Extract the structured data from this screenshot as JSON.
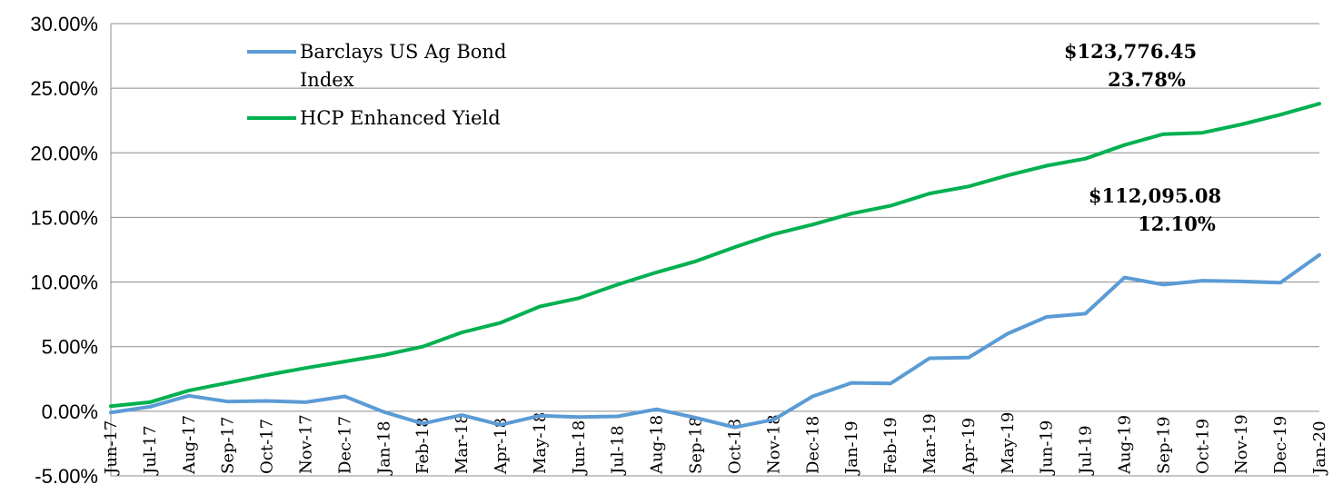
{
  "chart_data": {
    "type": "line",
    "categories": [
      "Jun-17",
      "Jul-17",
      "Aug-17",
      "Sep-17",
      "Oct-17",
      "Nov-17",
      "Dec-17",
      "Jan-18",
      "Feb-18",
      "Mar-18",
      "Apr-18",
      "May-18",
      "Jun-18",
      "Jul-18",
      "Aug-18",
      "Sep-18",
      "Oct-18",
      "Nov-18",
      "Dec-18",
      "Jan-19",
      "Feb-19",
      "Mar-19",
      "Apr-19",
      "May-19",
      "Jun-19",
      "Jul-19",
      "Aug-19",
      "Sep-19",
      "Oct-19",
      "Nov-19",
      "Dec-19",
      "Jan-20"
    ],
    "y_ticks": [
      "30.00%",
      "25.00%",
      "20.00%",
      "15.00%",
      "10.00%",
      "5.00%",
      "0.00%",
      "-5.00%"
    ],
    "y_tick_values": [
      30,
      25,
      20,
      15,
      10,
      5,
      0,
      -5
    ],
    "ylim": [
      -5,
      30
    ],
    "grid": true,
    "legend_position": "top-left",
    "series": [
      {
        "name": "Barclays US Ag Bond Index",
        "legend_lines": [
          "Barclays US Ag Bond",
          "Index"
        ],
        "color": "#5b9bd5",
        "values": [
          -0.1,
          0.35,
          1.2,
          0.75,
          0.8,
          0.7,
          1.15,
          -0.05,
          -0.95,
          -0.3,
          -1.05,
          -0.35,
          -0.45,
          -0.4,
          0.15,
          -0.5,
          -1.25,
          -0.65,
          1.15,
          2.2,
          2.15,
          4.1,
          4.15,
          6.0,
          7.3,
          7.55,
          10.35,
          9.8,
          10.1,
          10.05,
          9.95,
          12.1
        ]
      },
      {
        "name": "HCP Enhanced Yield",
        "legend_lines": [
          "HCP Enhanced Yield"
        ],
        "color": "#00b050",
        "values": [
          0.4,
          0.7,
          1.6,
          2.2,
          2.8,
          3.35,
          3.85,
          4.35,
          5.0,
          6.1,
          6.85,
          8.1,
          8.75,
          9.8,
          10.75,
          11.6,
          12.7,
          13.7,
          14.45,
          15.3,
          15.9,
          16.85,
          17.4,
          18.25,
          19.0,
          19.55,
          20.6,
          21.45,
          21.55,
          22.2,
          22.95,
          23.8
        ]
      }
    ],
    "annotations": [
      {
        "lines": [
          "$123,776.45",
          "23.78%"
        ]
      },
      {
        "lines": [
          "$112,095.08",
          "12.10%"
        ]
      }
    ]
  }
}
